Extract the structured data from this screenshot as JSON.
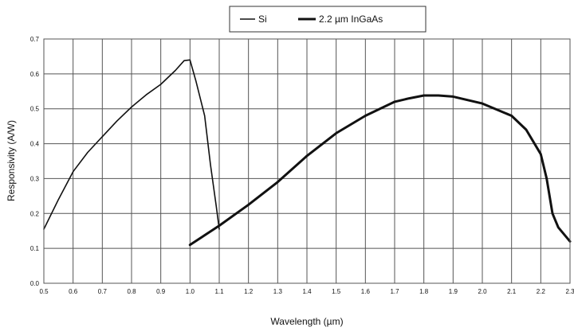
{
  "chart_data": {
    "type": "line",
    "xlabel": "Wavelength (µm)",
    "ylabel": "Responsivity (A/W)",
    "xlim": [
      0.5,
      2.3
    ],
    "ylim": [
      0.0,
      0.7
    ],
    "x_ticks": [
      "0.5",
      "0.6",
      "0.7",
      "0.8",
      "0.9",
      "1.0",
      "1.1",
      "1.2",
      "1.3",
      "1.4",
      "1.5",
      "1.6",
      "1.7",
      "1.8",
      "1.9",
      "2.0",
      "2.1",
      "2.2",
      "2.3"
    ],
    "y_ticks": [
      "0.0",
      "0.1",
      "0.2",
      "0.3",
      "0.4",
      "0.5",
      "0.6",
      "0.7"
    ],
    "grid": true,
    "legend_position": "top-center",
    "series": [
      {
        "name": "Si",
        "color": "#111111",
        "stroke": "thin",
        "points": [
          [
            0.5,
            0.155
          ],
          [
            0.55,
            0.24
          ],
          [
            0.6,
            0.32
          ],
          [
            0.65,
            0.375
          ],
          [
            0.7,
            0.42
          ],
          [
            0.75,
            0.465
          ],
          [
            0.8,
            0.505
          ],
          [
            0.85,
            0.54
          ],
          [
            0.9,
            0.57
          ],
          [
            0.95,
            0.61
          ],
          [
            0.98,
            0.638
          ],
          [
            1.0,
            0.64
          ],
          [
            1.02,
            0.58
          ],
          [
            1.05,
            0.48
          ],
          [
            1.07,
            0.34
          ],
          [
            1.09,
            0.22
          ],
          [
            1.1,
            0.155
          ]
        ]
      },
      {
        "name": "2.2 µm InGaAs",
        "color": "#111111",
        "stroke": "thick",
        "points": [
          [
            1.0,
            0.11
          ],
          [
            1.1,
            0.165
          ],
          [
            1.2,
            0.225
          ],
          [
            1.3,
            0.29
          ],
          [
            1.4,
            0.365
          ],
          [
            1.5,
            0.43
          ],
          [
            1.6,
            0.48
          ],
          [
            1.7,
            0.52
          ],
          [
            1.75,
            0.53
          ],
          [
            1.8,
            0.538
          ],
          [
            1.85,
            0.538
          ],
          [
            1.9,
            0.535
          ],
          [
            2.0,
            0.515
          ],
          [
            2.1,
            0.48
          ],
          [
            2.15,
            0.44
          ],
          [
            2.2,
            0.37
          ],
          [
            2.22,
            0.3
          ],
          [
            2.24,
            0.2
          ],
          [
            2.26,
            0.16
          ],
          [
            2.3,
            0.12
          ]
        ]
      }
    ]
  }
}
